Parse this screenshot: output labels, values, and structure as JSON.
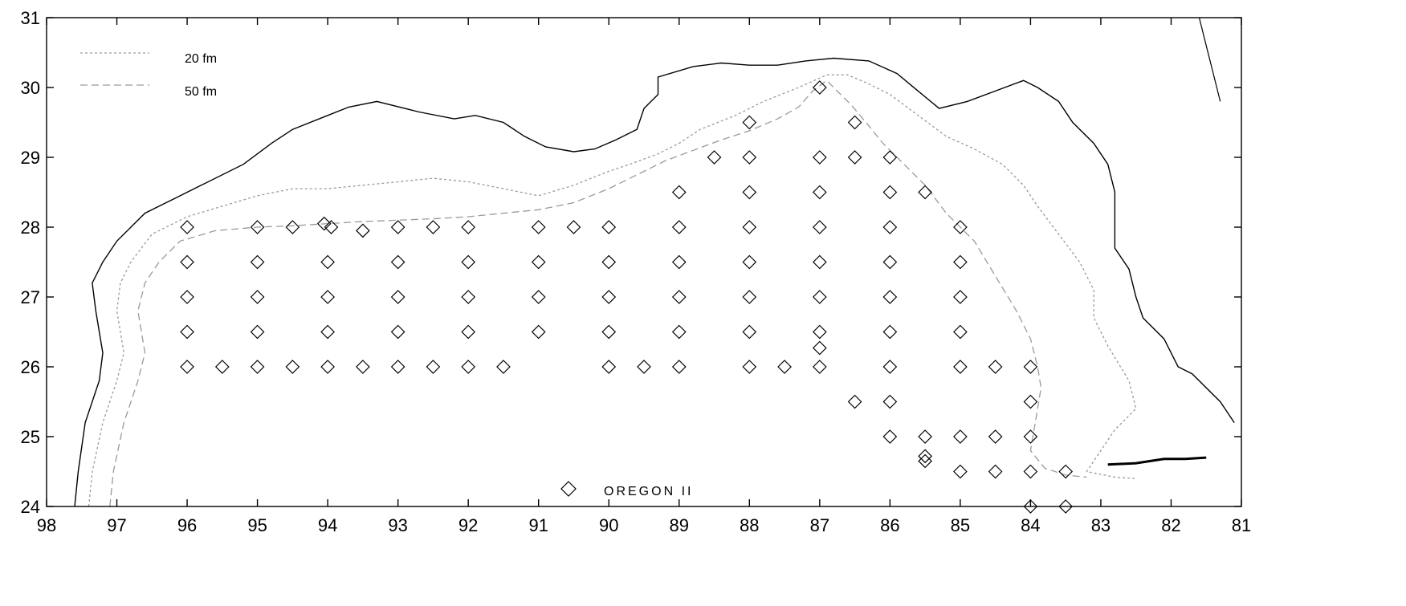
{
  "map": {
    "x_axis": {
      "ticks": [
        98,
        97,
        96,
        95,
        94,
        93,
        92,
        91,
        90,
        89,
        88,
        87,
        86,
        85,
        84,
        83,
        82,
        81
      ],
      "labels": [
        "98",
        "97",
        "96",
        "95",
        "94",
        "93",
        "92",
        "91",
        "90",
        "89",
        "88",
        "87",
        "86",
        "85",
        "84",
        "83",
        "82",
        "81"
      ]
    },
    "y_axis": {
      "ticks": [
        24,
        25,
        26,
        27,
        28,
        29,
        30,
        31
      ],
      "labels": [
        "24",
        "25",
        "26",
        "27",
        "28",
        "29",
        "30",
        "31"
      ]
    },
    "legend": {
      "isobath_20": "20 fm",
      "isobath_50": "50 fm",
      "vessel": "OREGON II"
    },
    "colors": {
      "frame": "#000000",
      "coast": "#000000",
      "isobath": "#9a9a9a",
      "station": "#000000"
    },
    "stations": [
      [
        96,
        28
      ],
      [
        95,
        28
      ],
      [
        94.5,
        28
      ],
      [
        94.05,
        28.05
      ],
      [
        93.95,
        28
      ],
      [
        93.5,
        27.95
      ],
      [
        93,
        28
      ],
      [
        92.5,
        28
      ],
      [
        92,
        28
      ],
      [
        91,
        28
      ],
      [
        90.5,
        28
      ],
      [
        90,
        28
      ],
      [
        89,
        28
      ],
      [
        88,
        28
      ],
      [
        87,
        28
      ],
      [
        86,
        28
      ],
      [
        85,
        28
      ],
      [
        96,
        27.5
      ],
      [
        95,
        27.5
      ],
      [
        94,
        27.5
      ],
      [
        93,
        27.5
      ],
      [
        92,
        27.5
      ],
      [
        91,
        27.5
      ],
      [
        90,
        27.5
      ],
      [
        89,
        27.5
      ],
      [
        88,
        27.5
      ],
      [
        87,
        27.5
      ],
      [
        86,
        27.5
      ],
      [
        85,
        27.5
      ],
      [
        96,
        27
      ],
      [
        95,
        27
      ],
      [
        94,
        27
      ],
      [
        93,
        27
      ],
      [
        92,
        27
      ],
      [
        91,
        27
      ],
      [
        90,
        27
      ],
      [
        89,
        27
      ],
      [
        88,
        27
      ],
      [
        87,
        27
      ],
      [
        86,
        27
      ],
      [
        85,
        27
      ],
      [
        96,
        26.5
      ],
      [
        95,
        26.5
      ],
      [
        94,
        26.5
      ],
      [
        93,
        26.5
      ],
      [
        92,
        26.5
      ],
      [
        91,
        26.5
      ],
      [
        90,
        26.5
      ],
      [
        89,
        26.5
      ],
      [
        88,
        26.5
      ],
      [
        87,
        26.5
      ],
      [
        86,
        26.5
      ],
      [
        85,
        26.5
      ],
      [
        87,
        26.27
      ],
      [
        96,
        26
      ],
      [
        95.5,
        26
      ],
      [
        95,
        26
      ],
      [
        94.5,
        26
      ],
      [
        94,
        26
      ],
      [
        93.5,
        26
      ],
      [
        93,
        26
      ],
      [
        92.5,
        26
      ],
      [
        92,
        26
      ],
      [
        91.5,
        26
      ],
      [
        90,
        26
      ],
      [
        89.5,
        26
      ],
      [
        89,
        26
      ],
      [
        88,
        26
      ],
      [
        87.5,
        26
      ],
      [
        87,
        26
      ],
      [
        86,
        26
      ],
      [
        85,
        26
      ],
      [
        84.5,
        26
      ],
      [
        84,
        26
      ],
      [
        86.5,
        25.5
      ],
      [
        86,
        25.5
      ],
      [
        84,
        25.5
      ],
      [
        86,
        25
      ],
      [
        85.5,
        25
      ],
      [
        85,
        25
      ],
      [
        84.5,
        25
      ],
      [
        84,
        25
      ],
      [
        85.5,
        24.72
      ],
      [
        85.5,
        24.65
      ],
      [
        85,
        24.5
      ],
      [
        84.5,
        24.5
      ],
      [
        84,
        24.5
      ],
      [
        83.5,
        24.5
      ],
      [
        84,
        24
      ],
      [
        83.5,
        24
      ],
      [
        88,
        29.5
      ],
      [
        86.5,
        29.5
      ],
      [
        88.5,
        29
      ],
      [
        88,
        29
      ],
      [
        87,
        29
      ],
      [
        86.5,
        29
      ],
      [
        86,
        29
      ],
      [
        89,
        28.5
      ],
      [
        88,
        28.5
      ],
      [
        87,
        28.5
      ],
      [
        86,
        28.5
      ],
      [
        85.5,
        28.5
      ],
      [
        87,
        30
      ]
    ],
    "coastline": [
      [
        97.6,
        24
      ],
      [
        97.55,
        24.5
      ],
      [
        97.45,
        25.2
      ],
      [
        97.25,
        25.8
      ],
      [
        97.2,
        26.2
      ],
      [
        97.3,
        26.8
      ],
      [
        97.35,
        27.2
      ],
      [
        97.2,
        27.5
      ],
      [
        97,
        27.8
      ],
      [
        96.6,
        28.2
      ],
      [
        96.2,
        28.4
      ],
      [
        95.8,
        28.6
      ],
      [
        95.2,
        28.9
      ],
      [
        94.8,
        29.2
      ],
      [
        94.5,
        29.4
      ],
      [
        94,
        29.6
      ],
      [
        93.7,
        29.72
      ],
      [
        93.3,
        29.8
      ],
      [
        92.7,
        29.65
      ],
      [
        92.2,
        29.55
      ],
      [
        91.9,
        29.6
      ],
      [
        91.5,
        29.5
      ],
      [
        91.2,
        29.3
      ],
      [
        90.9,
        29.15
      ],
      [
        90.5,
        29.08
      ],
      [
        90.2,
        29.12
      ],
      [
        89.9,
        29.25
      ],
      [
        89.6,
        29.4
      ],
      [
        89.5,
        29.7
      ],
      [
        89.3,
        29.9
      ],
      [
        89.3,
        30.15
      ],
      [
        88.8,
        30.3
      ],
      [
        88.4,
        30.35
      ],
      [
        88,
        30.32
      ],
      [
        87.6,
        30.32
      ],
      [
        87.2,
        30.38
      ],
      [
        86.8,
        30.42
      ],
      [
        86.3,
        30.38
      ],
      [
        85.9,
        30.2
      ],
      [
        85.6,
        29.95
      ],
      [
        85.3,
        29.7
      ],
      [
        84.9,
        29.8
      ],
      [
        84.5,
        29.95
      ],
      [
        84.1,
        30.1
      ],
      [
        83.9,
        30
      ],
      [
        83.6,
        29.8
      ],
      [
        83.4,
        29.5
      ],
      [
        83.1,
        29.2
      ],
      [
        82.9,
        28.9
      ],
      [
        82.8,
        28.5
      ],
      [
        82.8,
        28.1
      ],
      [
        82.8,
        27.7
      ],
      [
        82.6,
        27.4
      ],
      [
        82.5,
        27
      ],
      [
        82.4,
        26.7
      ],
      [
        82.1,
        26.4
      ],
      [
        81.9,
        26
      ],
      [
        81.7,
        25.9
      ],
      [
        81.3,
        25.5
      ],
      [
        81.1,
        25.2
      ]
    ],
    "coast_east": [
      [
        81.6,
        31
      ],
      [
        81.5,
        30.6
      ],
      [
        81.4,
        30.2
      ],
      [
        81.3,
        29.8
      ]
    ],
    "keys": [
      [
        82.9,
        24.6
      ],
      [
        82.5,
        24.62
      ],
      [
        82.1,
        24.68
      ],
      [
        81.8,
        24.68
      ],
      [
        81.5,
        24.7
      ]
    ],
    "isobath_20": [
      [
        97.4,
        24
      ],
      [
        97.35,
        24.5
      ],
      [
        97.2,
        25.2
      ],
      [
        97,
        25.8
      ],
      [
        96.9,
        26.2
      ],
      [
        97,
        26.8
      ],
      [
        96.95,
        27.2
      ],
      [
        96.8,
        27.5
      ],
      [
        96.5,
        27.9
      ],
      [
        96,
        28.15
      ],
      [
        95.5,
        28.3
      ],
      [
        95,
        28.45
      ],
      [
        94.5,
        28.55
      ],
      [
        94,
        28.55
      ],
      [
        93.5,
        28.6
      ],
      [
        93,
        28.65
      ],
      [
        92.5,
        28.7
      ],
      [
        92,
        28.65
      ],
      [
        91.5,
        28.55
      ],
      [
        91,
        28.45
      ],
      [
        90.5,
        28.6
      ],
      [
        90,
        28.8
      ],
      [
        89.7,
        28.9
      ],
      [
        89.3,
        29.05
      ],
      [
        89,
        29.2
      ],
      [
        88.7,
        29.4
      ],
      [
        88.2,
        29.6
      ],
      [
        87.8,
        29.8
      ],
      [
        87.3,
        30
      ],
      [
        86.9,
        30.18
      ],
      [
        86.6,
        30.18
      ],
      [
        86.3,
        30.05
      ],
      [
        86,
        29.9
      ],
      [
        85.6,
        29.6
      ],
      [
        85.2,
        29.3
      ],
      [
        84.8,
        29.12
      ],
      [
        84.4,
        28.9
      ],
      [
        84.1,
        28.6
      ],
      [
        83.9,
        28.3
      ],
      [
        83.6,
        27.9
      ],
      [
        83.3,
        27.5
      ],
      [
        83.1,
        27.1
      ],
      [
        83.1,
        26.7
      ],
      [
        82.9,
        26.3
      ],
      [
        82.6,
        25.8
      ],
      [
        82.5,
        25.4
      ],
      [
        82.8,
        25.1
      ],
      [
        83,
        24.8
      ],
      [
        83.2,
        24.5
      ],
      [
        82.8,
        24.42
      ],
      [
        82.5,
        24.4
      ]
    ],
    "isobath_50": [
      [
        97.1,
        24
      ],
      [
        97.05,
        24.5
      ],
      [
        96.9,
        25.2
      ],
      [
        96.7,
        25.8
      ],
      [
        96.6,
        26.2
      ],
      [
        96.7,
        26.8
      ],
      [
        96.6,
        27.2
      ],
      [
        96.4,
        27.5
      ],
      [
        96.1,
        27.8
      ],
      [
        95.6,
        27.95
      ],
      [
        95,
        28
      ],
      [
        94.5,
        28.02
      ],
      [
        94,
        28.05
      ],
      [
        93.5,
        28.08
      ],
      [
        93,
        28.1
      ],
      [
        92.5,
        28.12
      ],
      [
        92,
        28.15
      ],
      [
        91.5,
        28.2
      ],
      [
        91,
        28.25
      ],
      [
        90.5,
        28.35
      ],
      [
        90,
        28.55
      ],
      [
        89.6,
        28.75
      ],
      [
        89.2,
        28.95
      ],
      [
        88.8,
        29.1
      ],
      [
        88.4,
        29.25
      ],
      [
        88,
        29.38
      ],
      [
        87.6,
        29.55
      ],
      [
        87.3,
        29.72
      ],
      [
        87.1,
        29.95
      ],
      [
        86.9,
        30.1
      ],
      [
        86.75,
        29.95
      ],
      [
        86.55,
        29.75
      ],
      [
        86.3,
        29.45
      ],
      [
        86.1,
        29.2
      ],
      [
        85.8,
        28.9
      ],
      [
        85.5,
        28.6
      ],
      [
        85.2,
        28.2
      ],
      [
        84.8,
        27.8
      ],
      [
        84.5,
        27.3
      ],
      [
        84.2,
        26.8
      ],
      [
        84,
        26.4
      ],
      [
        83.9,
        26
      ],
      [
        83.85,
        25.7
      ],
      [
        83.9,
        25.4
      ],
      [
        83.95,
        25.1
      ],
      [
        84,
        24.8
      ],
      [
        83.8,
        24.55
      ],
      [
        83.5,
        24.45
      ],
      [
        83.2,
        24.42
      ]
    ]
  }
}
